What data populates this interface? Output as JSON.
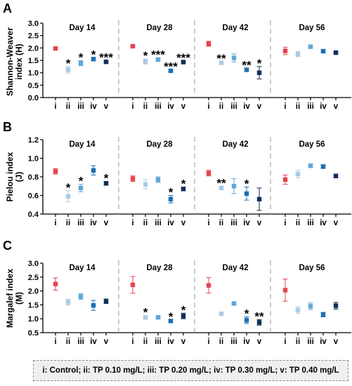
{
  "colors": {
    "i": "#e8424f",
    "ii": "#a9cbe6",
    "iii": "#5ea8d8",
    "iv": "#1d6fb3",
    "v": "#0f2f59",
    "divider": "#a8a8a8"
  },
  "legend_text": "i: Control; ii: TP 0.10 mg/L; iii: TP 0.20 mg/L; iv: TP 0.30 mg/L; v: TP 0.40 mg/L",
  "chart_data": [
    {
      "panel": "A",
      "type": "scatter",
      "ylabel": "Shannon-Weaver index (H)",
      "ylim": [
        0,
        3.0
      ],
      "yticks": [
        "0.0",
        "0.5",
        "1.0",
        "1.5",
        "2.0",
        "2.5",
        "3.0"
      ],
      "ytick_values": [
        0,
        0.5,
        1.0,
        1.5,
        2.0,
        2.5,
        3.0
      ],
      "categories": [
        "i",
        "ii",
        "iii",
        "iv",
        "v"
      ],
      "groups": [
        {
          "title": "Day 14",
          "values": [
            1.98,
            1.12,
            1.39,
            1.55,
            1.44
          ],
          "errors": [
            0.04,
            0.13,
            0.1,
            0.05,
            0.04
          ],
          "marks": [
            "",
            "*",
            "*",
            "*",
            "***"
          ]
        },
        {
          "title": "Day 28",
          "values": [
            2.07,
            1.45,
            1.53,
            1.08,
            1.43
          ],
          "errors": [
            0.04,
            0.1,
            0.07,
            0.04,
            0.04
          ],
          "marks": [
            "",
            "*",
            "***",
            "***",
            "***"
          ]
        },
        {
          "title": "Day 42",
          "values": [
            2.17,
            1.4,
            1.6,
            1.12,
            1.0
          ],
          "errors": [
            0.1,
            0.05,
            0.16,
            0.05,
            0.25
          ],
          "marks": [
            "",
            "**",
            "",
            "**",
            "*"
          ]
        },
        {
          "title": "Day 56",
          "values": [
            1.88,
            1.75,
            2.05,
            1.87,
            1.81
          ],
          "errors": [
            0.15,
            0.1,
            0.04,
            0.06,
            0.04
          ],
          "marks": [
            "",
            "",
            "",
            "",
            ""
          ]
        }
      ]
    },
    {
      "panel": "B",
      "type": "scatter",
      "ylabel": "Pielou index (J)",
      "ylim": [
        0.4,
        1.2
      ],
      "yticks": [
        "0.4",
        "0.6",
        "0.8",
        "1.0",
        "1.2"
      ],
      "ytick_values": [
        0.4,
        0.6,
        0.8,
        1.0,
        1.2
      ],
      "categories": [
        "i",
        "ii",
        "iii",
        "iv",
        "v"
      ],
      "groups": [
        {
          "title": "Day 14",
          "values": [
            0.86,
            0.59,
            0.68,
            0.87,
            0.73
          ],
          "errors": [
            0.03,
            0.06,
            0.04,
            0.05,
            0.02
          ],
          "marks": [
            "",
            "*",
            "*",
            "",
            "*"
          ]
        },
        {
          "title": "Day 28",
          "values": [
            0.78,
            0.72,
            0.77,
            0.56,
            0.67
          ],
          "errors": [
            0.03,
            0.05,
            0.03,
            0.04,
            0.02
          ],
          "marks": [
            "",
            "",
            "",
            "*",
            "*"
          ]
        },
        {
          "title": "Day 42",
          "values": [
            0.84,
            0.68,
            0.7,
            0.62,
            0.56
          ],
          "errors": [
            0.03,
            0.02,
            0.08,
            0.07,
            0.12
          ],
          "marks": [
            "",
            "**",
            "",
            "*",
            ""
          ]
        },
        {
          "title": "Day 56",
          "values": [
            0.77,
            0.83,
            0.92,
            0.91,
            0.81
          ],
          "errors": [
            0.05,
            0.04,
            0.02,
            0.02,
            0.02
          ],
          "marks": [
            "",
            "",
            "",
            "",
            ""
          ]
        }
      ]
    },
    {
      "panel": "C",
      "type": "scatter",
      "ylabel": "Margalef index (M)",
      "ylim": [
        0.5,
        3.0
      ],
      "yticks": [
        "0.5",
        "1.0",
        "1.5",
        "2.0",
        "2.5",
        "3.0"
      ],
      "ytick_values": [
        0.5,
        1.0,
        1.5,
        2.0,
        2.5,
        3.0
      ],
      "categories": [
        "i",
        "ii",
        "iii",
        "iv",
        "v"
      ],
      "groups": [
        {
          "title": "Day 14",
          "values": [
            2.25,
            1.6,
            1.8,
            1.48,
            1.63
          ],
          "errors": [
            0.22,
            0.1,
            0.1,
            0.18,
            0.08
          ],
          "marks": [
            "",
            "",
            "",
            "",
            ""
          ]
        },
        {
          "title": "Day 28",
          "values": [
            2.22,
            1.05,
            1.05,
            0.92,
            1.1
          ],
          "errors": [
            0.3,
            0.07,
            0.03,
            0.04,
            0.1
          ],
          "marks": [
            "",
            "*",
            "",
            "*",
            "*"
          ]
        },
        {
          "title": "Day 42",
          "values": [
            2.2,
            1.18,
            1.55,
            0.95,
            0.87
          ],
          "errors": [
            0.28,
            0.03,
            0.03,
            0.12,
            0.1
          ],
          "marks": [
            "",
            "",
            "",
            "*",
            "**"
          ]
        },
        {
          "title": "Day 56",
          "values": [
            2.03,
            1.31,
            1.45,
            1.15,
            1.47
          ],
          "errors": [
            0.4,
            0.12,
            0.12,
            0.08,
            0.12
          ],
          "marks": [
            "",
            "",
            "",
            "",
            ""
          ]
        }
      ]
    }
  ]
}
